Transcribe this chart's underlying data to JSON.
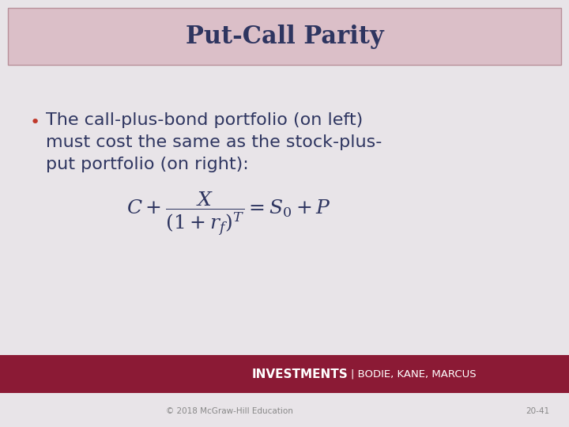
{
  "title": "Put-Call Parity",
  "title_bg_color": "#dbbfc8",
  "title_text_color": "#2e3560",
  "slide_bg_color": "#e8e4e8",
  "bullet_text_line1": "The call-plus-bond portfolio (on left)",
  "bullet_text_line2": "must cost the same as the stock-plus-",
  "bullet_text_line3": "put portfolio (on right):",
  "bullet_color": "#c0392b",
  "body_text_color": "#2e3560",
  "footer_bg_color": "#8b1a35",
  "footer_text": "INVESTMENTS",
  "footer_text2": "| BODIE, KANE, MARCUS",
  "footer_text_color": "#ffffff",
  "copyright_text": "© 2018 McGraw-Hill Education",
  "page_num": "20-41",
  "copyright_color": "#888888",
  "title_border_color": "#b8909a"
}
